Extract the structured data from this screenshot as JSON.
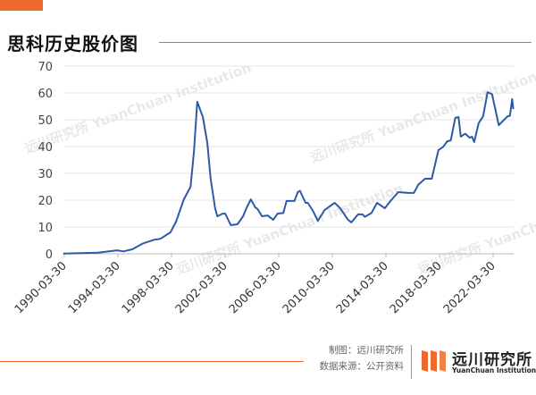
{
  "header": {
    "title": "思科历史股价图"
  },
  "footer": {
    "credit_line1": "制图：远川研究所",
    "credit_line2": "数据来源：公开资料",
    "logo_cn": "远川研究所",
    "logo_en": "YuanChuan Institution"
  },
  "watermark": "远川研究所 YuanChuan Institution",
  "colors": {
    "line": "#2c5aa8",
    "accent": "#ee6a2c",
    "grid": "#e6e6e6"
  },
  "chart_data": {
    "type": "line",
    "title": "思科历史股价图",
    "xlabel": "",
    "ylabel": "",
    "ylim": [
      0,
      70
    ],
    "yticks": [
      0,
      10,
      20,
      30,
      40,
      50,
      60,
      70
    ],
    "xticks": [
      "1990-03-30",
      "1994-03-30",
      "1998-03-30",
      "2002-03-30",
      "2006-03-30",
      "2010-03-30",
      "2014-03-30",
      "2018-03-30",
      "2022-03-30"
    ],
    "grid": true,
    "legend": "none",
    "x": [
      "1990-03",
      "1992-10",
      "1994-03",
      "1994-09",
      "1995-05",
      "1996-02",
      "1996-12",
      "1997-06",
      "1998-03",
      "1998-08",
      "1999-03",
      "1999-09",
      "1999-12",
      "2000-03",
      "2000-08",
      "2000-12",
      "2001-03",
      "2001-07",
      "2001-09",
      "2002-02",
      "2002-04",
      "2002-09",
      "2003-03",
      "2003-08",
      "2003-11",
      "2004-03",
      "2004-07",
      "2004-09",
      "2005-01",
      "2005-06",
      "2005-11",
      "2006-03",
      "2006-08",
      "2006-11",
      "2007-06",
      "2007-09",
      "2007-11",
      "2008-04",
      "2008-06",
      "2008-11",
      "2009-03",
      "2009-09",
      "2010-06",
      "2010-11",
      "2011-06",
      "2011-09",
      "2012-03",
      "2012-07",
      "2012-09",
      "2013-03",
      "2013-08",
      "2014-03",
      "2014-08",
      "2015-03",
      "2015-12",
      "2016-05",
      "2016-09",
      "2017-03",
      "2017-09",
      "2018-03",
      "2018-07",
      "2018-11",
      "2019-02",
      "2019-06",
      "2019-09",
      "2019-11",
      "2020-03",
      "2020-07",
      "2020-09",
      "2020-11",
      "2021-03",
      "2021-07",
      "2021-11",
      "2022-03",
      "2022-09",
      "2023-05",
      "2023-07",
      "2023-09",
      "2023-10"
    ],
    "values": [
      0.1,
      0.4,
      1.3,
      0.9,
      1.7,
      3.8,
      5.2,
      5.6,
      8,
      12,
      20.3,
      25,
      38,
      56.7,
      51,
      41.3,
      28,
      17,
      14,
      15,
      15,
      10.7,
      11,
      14,
      17,
      20.3,
      17.3,
      16.7,
      14,
      14.3,
      12.7,
      15,
      15.2,
      19.7,
      19.7,
      23,
      23.5,
      19,
      19,
      15.7,
      12.3,
      16.3,
      19,
      17,
      12.7,
      11.7,
      14.7,
      14.7,
      13.8,
      15.2,
      19,
      17,
      19.7,
      23,
      22.7,
      22.7,
      25.8,
      28,
      28,
      38.7,
      39.8,
      42,
      42.3,
      50.7,
      51,
      43.7,
      44.8,
      43.3,
      43.7,
      41.7,
      48.7,
      51.3,
      60.3,
      59.5,
      48,
      51.3,
      51.5,
      57.7,
      54
    ]
  }
}
